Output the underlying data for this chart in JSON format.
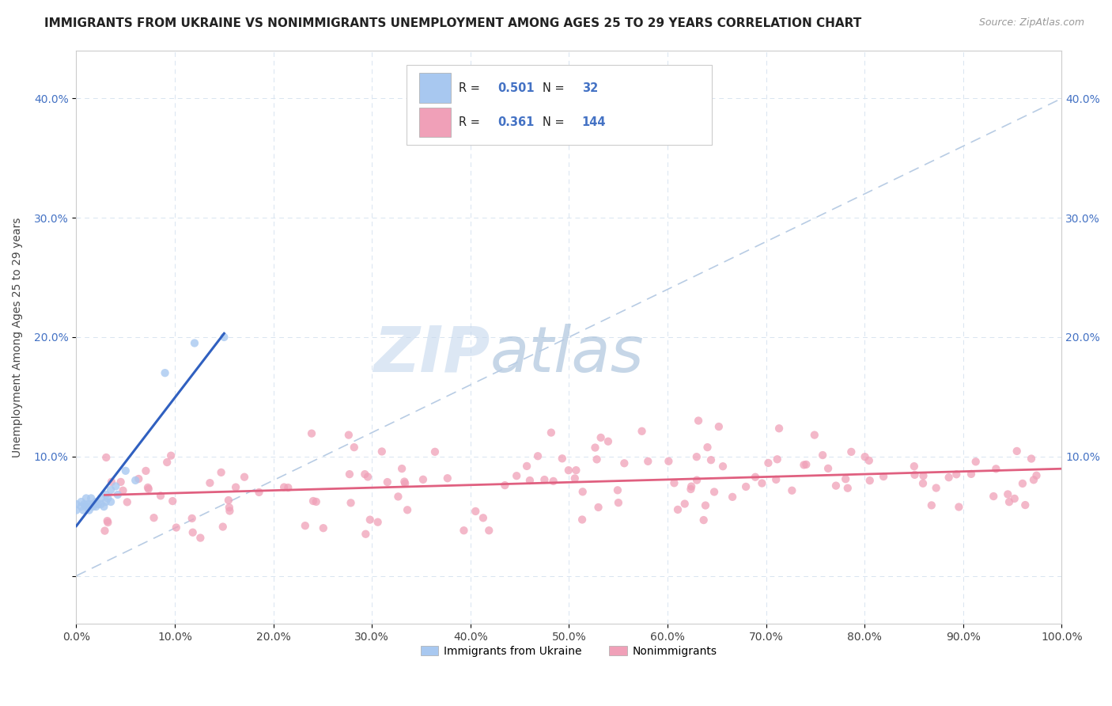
{
  "title": "IMMIGRANTS FROM UKRAINE VS NONIMMIGRANTS UNEMPLOYMENT AMONG AGES 25 TO 29 YEARS CORRELATION CHART",
  "source": "Source: ZipAtlas.com",
  "ylabel": "Unemployment Among Ages 25 to 29 years",
  "xlim": [
    0.0,
    1.0
  ],
  "ylim": [
    -0.04,
    0.44
  ],
  "ukraine_R": 0.501,
  "ukraine_N": 32,
  "nonimm_R": 0.361,
  "nonimm_N": 144,
  "ukraine_color": "#a8c8f0",
  "nonimm_color": "#f0a0b8",
  "ukraine_line_color": "#3060c0",
  "nonimm_line_color": "#e06080",
  "ref_line_color": "#b8cce4",
  "background_color": "#ffffff",
  "grid_color": "#d8e4f0",
  "title_fontsize": 11,
  "label_fontsize": 10,
  "tick_fontsize": 10,
  "ytick_color": "#4472c4",
  "watermark_zip_color": "#c8d8ec",
  "watermark_atlas_color": "#8fb8d8"
}
